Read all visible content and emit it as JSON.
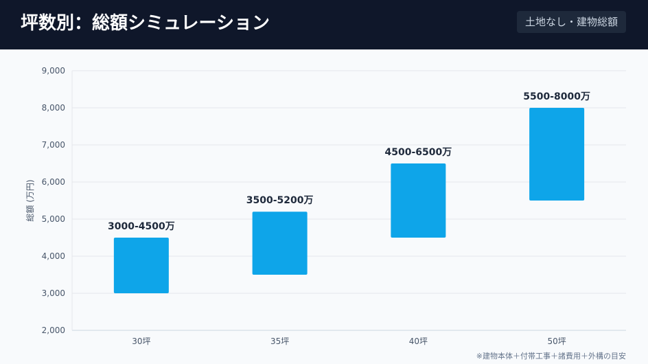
{
  "header": {
    "title": "坪数別：総額シミュレーション",
    "badge": "土地なし・建物総額"
  },
  "note": "※建物本体＋付帯工事＋諸費用＋外構の目安",
  "colors": {
    "bar": "#0ea5e9",
    "header_bg": "#0f172a"
  },
  "chart_data": {
    "type": "bar",
    "subtype": "floating-range",
    "categories": [
      "30坪",
      "35坪",
      "40坪",
      "50坪"
    ],
    "ranges": [
      [
        3000,
        4500
      ],
      [
        3500,
        5200
      ],
      [
        4500,
        6500
      ],
      [
        5500,
        8000
      ]
    ],
    "data_labels": [
      "3000-4500万",
      "3500-5200万",
      "4500-6500万",
      "5500-8000万"
    ],
    "ylabel": "総額 (万円)",
    "ylim": [
      2000,
      9000
    ],
    "yticks": [
      "2,000",
      "3,000",
      "4,000",
      "5,000",
      "6,000",
      "7,000",
      "8,000",
      "9,000"
    ],
    "grid": true
  }
}
